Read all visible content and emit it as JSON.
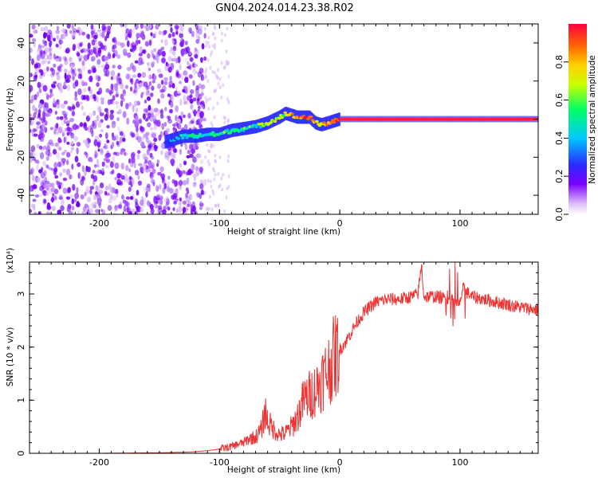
{
  "title": "GN04.2024.014.23.38.R02",
  "chart_data": [
    {
      "type": "heatmap",
      "name": "spectrogram",
      "xlabel": "Height of straight line (km)",
      "ylabel": "Frequency (Hz)",
      "xlim": [
        -258,
        165
      ],
      "ylim": [
        -50,
        50
      ],
      "xticks": [
        -200,
        -100,
        0,
        100
      ],
      "yticks": [
        -40,
        -20,
        0,
        20,
        40
      ],
      "colorbar": {
        "label": "Normalized spectral amplitude",
        "range": [
          0.0,
          1.0
        ],
        "ticks": [
          0.0,
          0.2,
          0.4,
          0.6,
          0.8
        ],
        "tick_labels": [
          "0.0",
          "0.2",
          "0.4",
          "0.6",
          "0.8"
        ],
        "colors": [
          "#ffffff",
          "#d9b8f7",
          "#7a00ff",
          "#2b2bff",
          "#00c8ff",
          "#00ff66",
          "#c8ff00",
          "#ffd200",
          "#ff6a00",
          "#ff0040"
        ]
      },
      "noise_region": {
        "x_range": [
          -258,
          -112
        ],
        "description": "scattered purple speckle"
      },
      "track": {
        "x": [
          -145,
          -140,
          -130,
          -120,
          -110,
          -100,
          -90,
          -80,
          -70,
          -60,
          -50,
          -45,
          -40,
          -35,
          -30,
          -25,
          -20,
          -15,
          -10,
          -5,
          0,
          50,
          100,
          165
        ],
        "y": [
          -12,
          -11,
          -9,
          -9,
          -8,
          -8,
          -6,
          -5,
          -4,
          -2,
          1,
          3,
          2,
          1,
          1,
          1,
          -2,
          -3,
          -2,
          -1,
          0,
          0,
          0,
          0
        ],
        "amplitude": [
          0.35,
          0.4,
          0.45,
          0.5,
          0.5,
          0.55,
          0.5,
          0.55,
          0.5,
          0.6,
          0.65,
          0.7,
          0.75,
          0.85,
          0.9,
          0.9,
          0.8,
          0.7,
          0.85,
          0.9,
          0.95,
          0.95,
          0.95,
          0.95
        ]
      }
    },
    {
      "type": "line",
      "name": "snr",
      "xlabel": "Height of straight line (km)",
      "ylabel": "SNR (10 * v/v)",
      "yscale_label": "(x10⁴)",
      "xlim": [
        -258,
        165
      ],
      "ylim": [
        0,
        3.6
      ],
      "xticks": [
        -200,
        -100,
        0,
        100
      ],
      "yticks": [
        0,
        1,
        2,
        3
      ],
      "color": "#ee3333",
      "series": [
        {
          "name": "SNR",
          "x": [
            -258,
            -200,
            -150,
            -130,
            -120,
            -110,
            -100,
            -95,
            -90,
            -85,
            -80,
            -75,
            -70,
            -65,
            -62,
            -60,
            -55,
            -50,
            -45,
            -40,
            -35,
            -30,
            -25,
            -20,
            -15,
            -10,
            -5,
            0,
            5,
            10,
            15,
            20,
            25,
            30,
            40,
            50,
            60,
            65,
            68,
            70,
            80,
            90,
            95,
            100,
            102,
            110,
            120,
            130,
            140,
            150,
            165
          ],
          "y": [
            0.0,
            0.0,
            0.01,
            0.02,
            0.03,
            0.05,
            0.08,
            0.1,
            0.13,
            0.17,
            0.2,
            0.28,
            0.3,
            0.45,
            0.8,
            0.6,
            0.45,
            0.35,
            0.38,
            0.5,
            0.7,
            1.0,
            1.1,
            1.2,
            1.4,
            1.55,
            1.8,
            1.95,
            2.1,
            2.3,
            2.5,
            2.65,
            2.75,
            2.85,
            2.9,
            2.9,
            2.95,
            3.0,
            3.55,
            2.95,
            2.95,
            2.9,
            2.85,
            2.8,
            3.1,
            2.95,
            2.9,
            2.85,
            2.8,
            2.75,
            2.7
          ]
        }
      ]
    }
  ]
}
